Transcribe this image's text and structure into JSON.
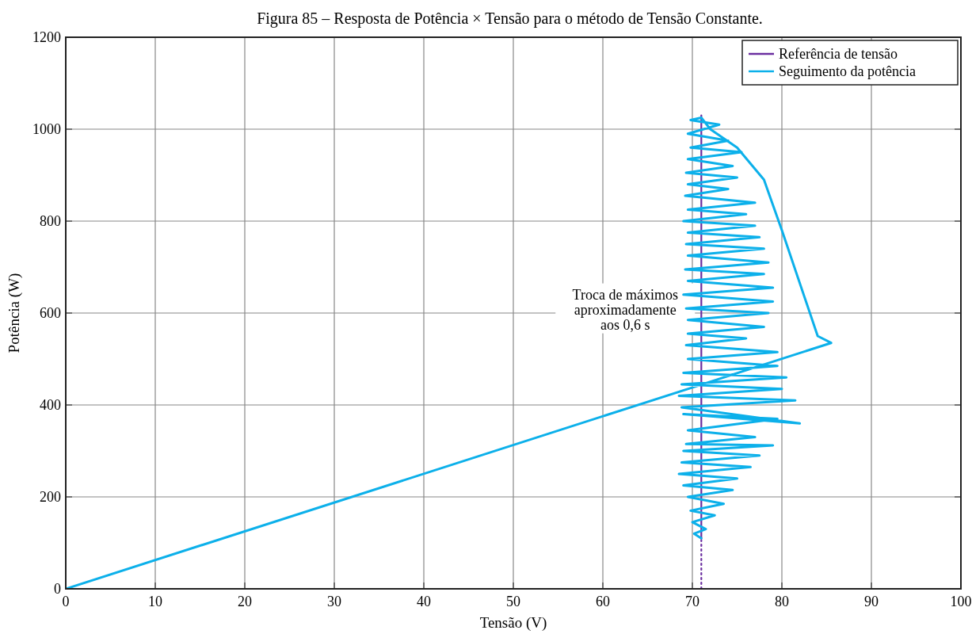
{
  "chart_data": {
    "type": "line",
    "title": "Figura 85 – Resposta de Potência × Tensão para o método de Tensão Constante.",
    "xlabel": "Tensão (V)",
    "ylabel": "Potência (W)",
    "annotations": [
      "Troca de máximos\naproximadamente\naos 0,6 s"
    ],
    "xlim": [
      0,
      100
    ],
    "ylim": [
      0,
      1200
    ],
    "xticks": [
      0,
      10,
      20,
      30,
      40,
      50,
      60,
      70,
      80,
      90,
      100
    ],
    "yticks": [
      0,
      200,
      400,
      600,
      800,
      1000,
      1200
    ],
    "grid": true,
    "legend": "top right",
    "series": [
      {
        "name": "Referência de tensão",
        "color": "#6b2fa0",
        "x": [
          71,
          71
        ],
        "values": [
          110,
          1030
        ],
        "line_style": "solid"
      },
      {
        "color": "#6b2fa0",
        "x": [
          71,
          71
        ],
        "values": [
          0,
          110
        ],
        "line_style": "dotted"
      },
      {
        "name": "Seguimento da potência",
        "color": "#0cb0ea",
        "line_style": "solid",
        "x": [
          0,
          85.5,
          84,
          80,
          78,
          75,
          72,
          71,
          69.8,
          73,
          69.5,
          74,
          69.8,
          75.5,
          69.5,
          74.5,
          69.3,
          75,
          69.5,
          74,
          69.2,
          77,
          69.5,
          76,
          69,
          77,
          69.5,
          77.5,
          69.3,
          78,
          69.5,
          78.5,
          69.2,
          78,
          69.5,
          79,
          69,
          79,
          69.3,
          78.5,
          69.5,
          78,
          69.5,
          76,
          69.3,
          79.5,
          69.5,
          79.5,
          69,
          80.5,
          68.8,
          80,
          68.5,
          81.5,
          68.8,
          82,
          69,
          79.5,
          69.5,
          77,
          69.3,
          79,
          69,
          77.5,
          68.8,
          76.5,
          68.5,
          75,
          69,
          74.5,
          69.5,
          73.5,
          69.8,
          72.5,
          70,
          71.5,
          70.2,
          71
        ],
        "values": [
          0,
          535,
          550,
          780,
          890,
          960,
          1000,
          1025,
          1020,
          1010,
          990,
          975,
          960,
          950,
          935,
          920,
          905,
          895,
          880,
          870,
          855,
          840,
          825,
          815,
          800,
          790,
          775,
          765,
          750,
          740,
          725,
          710,
          695,
          685,
          670,
          655,
          640,
          625,
          610,
          600,
          585,
          570,
          555,
          545,
          530,
          515,
          500,
          485,
          470,
          460,
          445,
          435,
          420,
          410,
          395,
          360,
          380,
          370,
          345,
          330,
          315,
          312,
          300,
          290,
          275,
          265,
          250,
          240,
          225,
          215,
          200,
          185,
          170,
          160,
          145,
          130,
          120,
          110
        ]
      }
    ]
  }
}
